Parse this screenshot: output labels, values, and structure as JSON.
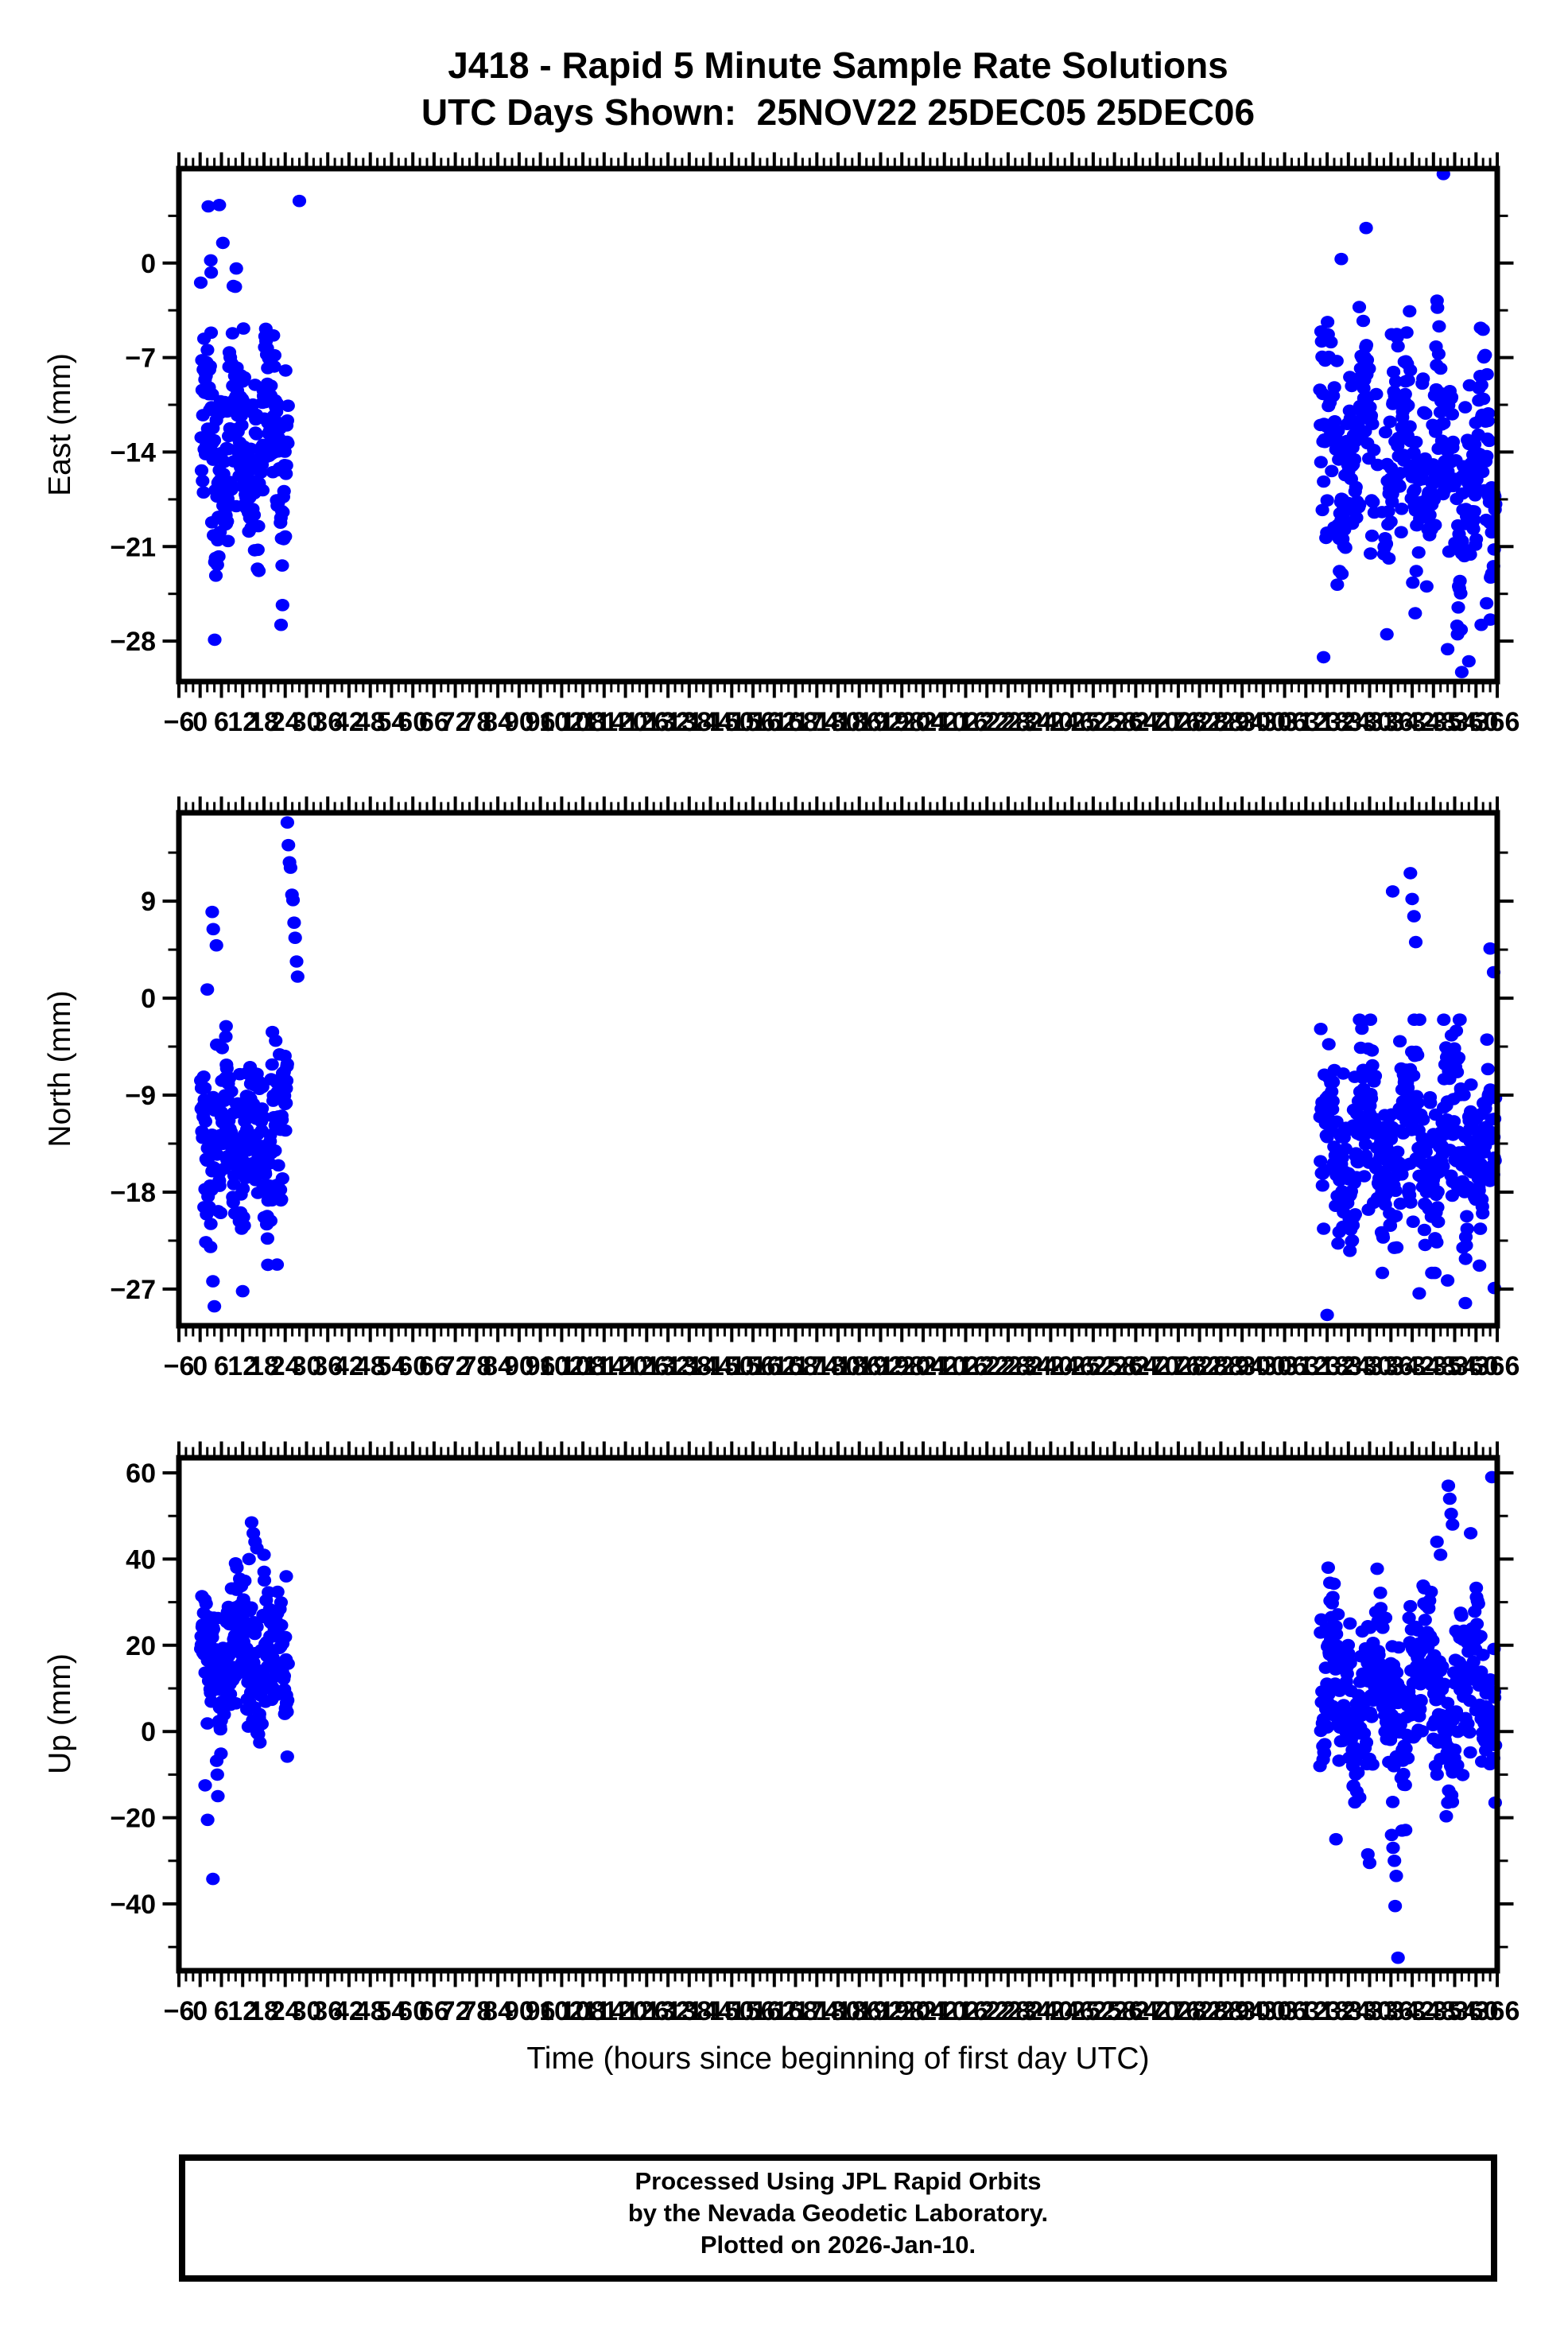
{
  "station": "J418",
  "title": {
    "line1": "J418 - Rapid 5 Minute Sample Rate Solutions",
    "line2": "UTC Days Shown:  25NOV22 25DEC05 25DEC06"
  },
  "footer": {
    "line1": "Processed Using JPL Rapid Orbits",
    "line2": "by the Nevada Geodetic Laboratory.",
    "line3": "Plotted on 2026-Jan-10."
  },
  "colors": {
    "marker": "#0000ff",
    "frame": "#000000",
    "background": "#ffffff",
    "text": "#000000"
  },
  "chart_data": {
    "type": "scatter",
    "xlabel": "Time (hours since beginning of first day UTC)",
    "days_shown": [
      "25NOV22",
      "25DEC05",
      "25DEC06"
    ],
    "x_axis": {
      "min": -6,
      "max": 366,
      "major_step": 6,
      "minor_step": 2,
      "tick_labels": [
        "−6",
        "0",
        "6",
        "12",
        "18",
        "24",
        "30",
        "36",
        "42",
        "48",
        "54",
        "60",
        "66",
        "72",
        "78",
        "84",
        "90",
        "96",
        "102",
        "108",
        "114",
        "120",
        "126",
        "132",
        "138",
        "144",
        "150",
        "156",
        "162",
        "168",
        "174",
        "180",
        "186",
        "192",
        "198",
        "204",
        "210",
        "216",
        "222",
        "228",
        "234",
        "240",
        "246",
        "252",
        "258",
        "264",
        "270",
        "276",
        "282",
        "288",
        "294",
        "300",
        "306",
        "312",
        "318",
        "324",
        "330",
        "336",
        "342",
        "348",
        "354",
        "360",
        "366"
      ]
    },
    "marker": {
      "shape": "ellipse",
      "rx": 8.6,
      "ry": 7.8,
      "color": "#0000ff"
    },
    "panels": [
      {
        "name": "east",
        "ylabel": "East (mm)",
        "ylim": [
          7.0,
          -31.0
        ],
        "yticks": [
          0,
          -7,
          -14,
          -21,
          -28
        ],
        "y_minor_step": 3.5,
        "clusters": [
          {
            "t_start": 0.2,
            "t_end": 24.8,
            "n": 255,
            "mean": -13.5,
            "trend": 0,
            "a1": 3.2,
            "p1": 9,
            "ph1": 0.8,
            "a2": 2.2,
            "p2": 3.1,
            "ph2": 2.0,
            "sd": 3.4,
            "y_min": -27.5,
            "y_max": -0.5,
            "seed": 7
          },
          {
            "t_start": 316,
            "t_end": 365.5,
            "n": 440,
            "mean": -13.2,
            "trend": -0.07,
            "a1": 3.8,
            "p1": 11,
            "ph1": 2.6,
            "a2": 2.4,
            "p2": 4.2,
            "ph2": 0.7,
            "sd": 3.6,
            "y_min": -27.5,
            "y_max": -1.0,
            "seed": 8,
            "gap": [
              330.8,
              334.0
            ]
          }
        ],
        "outliers": [
          [
            2.3,
            4.2
          ],
          [
            5.4,
            4.3
          ],
          [
            3.0,
            0.2
          ],
          [
            3.1,
            -0.7
          ],
          [
            6.4,
            1.5
          ],
          [
            10.2,
            -0.4
          ],
          [
            28.0,
            4.6
          ],
          [
            4.1,
            -27.9
          ],
          [
            350.8,
            6.6
          ],
          [
            329.0,
            2.6
          ],
          [
            322.0,
            0.3
          ],
          [
            317.0,
            -29.2
          ],
          [
            352.0,
            -28.6
          ],
          [
            356.0,
            -30.3
          ],
          [
            358.0,
            -29.5
          ],
          [
            361.5,
            -26.8
          ],
          [
            363.0,
            -25.2
          ],
          [
            364.5,
            -23.0
          ]
        ]
      },
      {
        "name": "north",
        "ylabel": "North (mm)",
        "ylim": [
          17.2,
          -30.4
        ],
        "yticks": [
          9,
          0,
          -9,
          -18,
          -27
        ],
        "y_minor_step": 4.5,
        "clusters": [
          {
            "t_start": 0.2,
            "t_end": 24.6,
            "n": 245,
            "mean": -13.2,
            "trend": 0,
            "a1": 3.2,
            "p1": 8,
            "ph1": 2.2,
            "a2": 2.0,
            "p2": 3.4,
            "ph2": 1.1,
            "sd": 3.6,
            "y_min": -26.8,
            "y_max": -1.5,
            "seed": 9
          },
          {
            "t_start": 316,
            "t_end": 365.5,
            "n": 440,
            "mean": -13.6,
            "trend": 0,
            "a1": 3.6,
            "p1": 12,
            "ph1": 5.0,
            "a2": 2.2,
            "p2": 4.0,
            "ph2": 2.9,
            "sd": 3.7,
            "y_min": -25.5,
            "y_max": -2.0,
            "seed": 10
          }
        ],
        "outliers": [
          [
            24.6,
            16.3
          ],
          [
            24.9,
            14.2
          ],
          [
            25.2,
            12.6
          ],
          [
            25.5,
            12.1
          ],
          [
            25.9,
            9.6
          ],
          [
            26.2,
            9.1
          ],
          [
            26.5,
            7.0
          ],
          [
            26.8,
            5.6
          ],
          [
            27.2,
            3.4
          ],
          [
            27.5,
            2.0
          ],
          [
            3.4,
            8.0
          ],
          [
            3.7,
            6.4
          ],
          [
            4.6,
            4.9
          ],
          [
            2.0,
            0.8
          ],
          [
            4.0,
            -28.6
          ],
          [
            12.0,
            -27.2
          ],
          [
            341.5,
            11.6
          ],
          [
            342.0,
            9.2
          ],
          [
            342.5,
            7.6
          ],
          [
            343.0,
            5.2
          ],
          [
            364.0,
            4.6
          ],
          [
            365.0,
            2.4
          ],
          [
            318.0,
            -29.4
          ],
          [
            344.0,
            -27.4
          ],
          [
            352.0,
            -26.2
          ],
          [
            357.0,
            -28.3
          ],
          [
            365.2,
            -26.9
          ],
          [
            336.5,
            9.9
          ]
        ]
      },
      {
        "name": "up",
        "ylabel": "Up (mm)",
        "ylim": [
          63.5,
          -55.5
        ],
        "yticks": [
          60,
          40,
          20,
          0,
          -20,
          -40
        ],
        "y_minor_step": 10,
        "clusters": [
          {
            "t_start": 0.2,
            "t_end": 24.8,
            "n": 245,
            "mean": 16,
            "trend": 0,
            "a1": 7,
            "p1": 10,
            "ph1": 1.0,
            "a2": 4,
            "p2": 3.6,
            "ph2": 0.5,
            "sd": 7,
            "y_min": -10,
            "y_max": 38,
            "seed": 11
          },
          {
            "t_start": 316,
            "t_end": 365.5,
            "n": 440,
            "mean": 8.5,
            "trend": 0,
            "a1": 9,
            "p1": 13,
            "ph1": 4.2,
            "a2": 5,
            "p2": 4.5,
            "ph2": 1.6,
            "sd": 8,
            "y_min": -23,
            "y_max": 40,
            "seed": 12
          }
        ],
        "outliers": [
          [
            14.5,
            48.5
          ],
          [
            15.0,
            46.0
          ],
          [
            15.5,
            44.0
          ],
          [
            16.0,
            42.5
          ],
          [
            13.8,
            40.0
          ],
          [
            18.0,
            41.0
          ],
          [
            24.3,
            36.0
          ],
          [
            10.0,
            39.0
          ],
          [
            2.1,
            -20.5
          ],
          [
            3.6,
            -34.2
          ],
          [
            5.0,
            -15.0
          ],
          [
            1.4,
            -12.5
          ],
          [
            318.3,
            38.0
          ],
          [
            318.8,
            34.5
          ],
          [
            349.0,
            44.0
          ],
          [
            350.0,
            41.0
          ],
          [
            352.2,
            57.0
          ],
          [
            352.6,
            54.0
          ],
          [
            353.0,
            50.5
          ],
          [
            353.4,
            48.0
          ],
          [
            358.5,
            46.0
          ],
          [
            364.5,
            59.0
          ],
          [
            336.2,
            -24.0
          ],
          [
            336.6,
            -27.0
          ],
          [
            337.0,
            -30.0
          ],
          [
            337.5,
            -33.5
          ],
          [
            337.2,
            -40.5
          ],
          [
            338.0,
            -52.5
          ],
          [
            320.5,
            -25.0
          ],
          [
            329.5,
            -28.5
          ],
          [
            330.0,
            -30.5
          ]
        ]
      }
    ]
  }
}
